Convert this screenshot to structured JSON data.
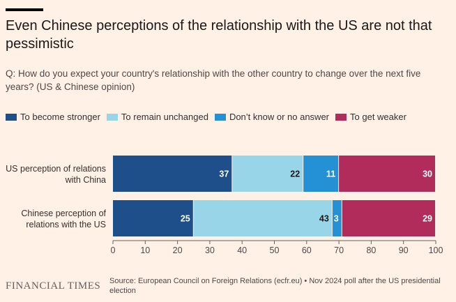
{
  "title": "Even Chinese perceptions of the relationship with the US are not that pessimistic",
  "subtitle": "Q: How do you expect your country's relationship with the other country to change over the next five years? (US & Chinese opinion)",
  "footer": {
    "logo": "FINANCIAL TIMES",
    "source": "Source: European Council on Foreign Relations (ecfr.eu) • Nov 2024 poll after the US presidential election"
  },
  "chart_data": {
    "type": "bar",
    "orientation": "horizontal",
    "stacked": true,
    "categories": [
      "US perception of relations with China",
      "Chinese perception of relations with the US"
    ],
    "series": [
      {
        "name": "To become stronger",
        "values": [
          37,
          25
        ],
        "color": "#1e4f8a"
      },
      {
        "name": "To remain unchanged",
        "values": [
          22,
          43
        ],
        "color": "#98d5e8"
      },
      {
        "name": "Don’t know or no answer",
        "values": [
          11,
          3
        ],
        "color": "#2491d4"
      },
      {
        "name": "To get weaker",
        "values": [
          30,
          29
        ],
        "color": "#b22c5b"
      }
    ],
    "xlim": [
      0,
      100
    ],
    "xticks": [
      0,
      10,
      20,
      30,
      40,
      50,
      60,
      70,
      80,
      90,
      100
    ],
    "legend_position": "top",
    "grid": false
  }
}
